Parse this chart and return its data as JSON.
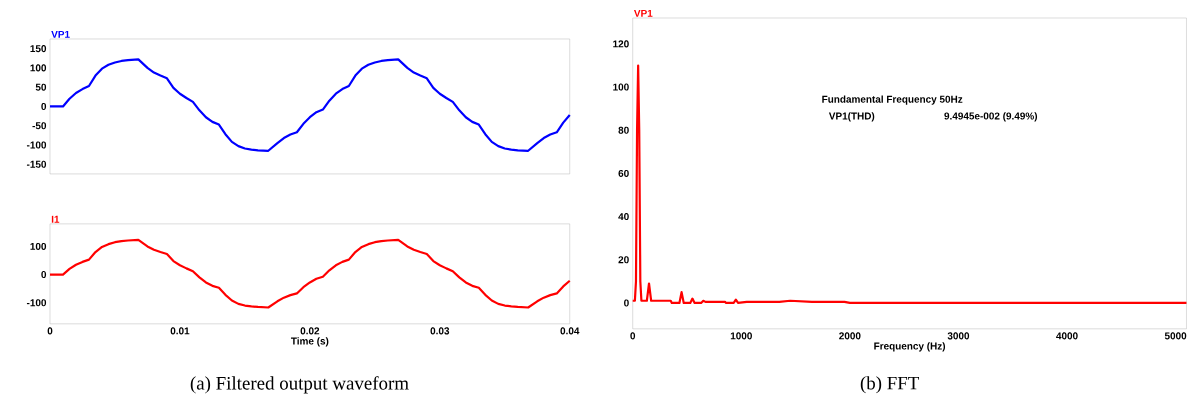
{
  "chart_data": [
    {
      "type": "line",
      "x": [
        0,
        0.001,
        0.0015,
        0.002,
        0.0025,
        0.003,
        0.0035,
        0.004,
        0.0045,
        0.005,
        0.0055,
        0.006,
        0.0068,
        0.0075,
        0.008,
        0.0085,
        0.009,
        0.0095,
        0.01,
        0.0105,
        0.011,
        0.0115,
        0.012,
        0.0125,
        0.013,
        0.0135,
        0.014,
        0.0145,
        0.015,
        0.0155,
        0.016,
        0.0168,
        0.0175,
        0.018,
        0.0185,
        0.019,
        0.0195,
        0.02,
        0.0205,
        0.021,
        0.0215,
        0.022,
        0.0225,
        0.023,
        0.0235,
        0.024,
        0.0245,
        0.025,
        0.0255,
        0.026,
        0.0268,
        0.0275,
        0.028,
        0.0285,
        0.029,
        0.0295,
        0.03,
        0.0305,
        0.031,
        0.0315,
        0.032,
        0.0325,
        0.033,
        0.0335,
        0.034,
        0.0345,
        0.035,
        0.0355,
        0.036,
        0.0368,
        0.0375,
        0.038,
        0.0385,
        0.039,
        0.0395,
        0.04
      ],
      "series": [
        {
          "name": "VP1",
          "color": "#0000ff",
          "values": [
            0,
            0,
            20,
            35,
            45,
            53,
            80,
            98,
            108,
            114,
            118,
            120,
            122,
            100,
            88,
            80,
            73,
            48,
            33,
            22,
            12,
            -10,
            -28,
            -40,
            -47,
            -72,
            -92,
            -103,
            -109,
            -112,
            -114,
            -115,
            -95,
            -82,
            -73,
            -67,
            -45,
            -28,
            -15,
            -8,
            15,
            33,
            45,
            53,
            80,
            98,
            108,
            114,
            118,
            120,
            122,
            100,
            88,
            80,
            73,
            48,
            33,
            22,
            12,
            -10,
            -28,
            -40,
            -47,
            -72,
            -92,
            -103,
            -109,
            -112,
            -114,
            -115,
            -95,
            -82,
            -73,
            -67,
            -42,
            -22
          ]
        }
      ],
      "xlim": [
        0,
        0.04
      ],
      "ylim": [
        -175,
        175
      ],
      "xticks": [
        0,
        0.01,
        0.02,
        0.03,
        0.04
      ],
      "yticks": [
        -150,
        -100,
        -50,
        0,
        50,
        100,
        150
      ],
      "tick_labels": "y"
    },
    {
      "type": "line",
      "x": [
        0,
        0.001,
        0.0015,
        0.002,
        0.0025,
        0.003,
        0.0035,
        0.004,
        0.0045,
        0.005,
        0.0055,
        0.006,
        0.0068,
        0.0075,
        0.008,
        0.0085,
        0.009,
        0.0095,
        0.01,
        0.0105,
        0.011,
        0.0115,
        0.012,
        0.0125,
        0.013,
        0.0135,
        0.014,
        0.0145,
        0.015,
        0.0155,
        0.016,
        0.0168,
        0.0175,
        0.018,
        0.0185,
        0.019,
        0.0195,
        0.02,
        0.0205,
        0.021,
        0.0215,
        0.022,
        0.0225,
        0.023,
        0.0235,
        0.024,
        0.0245,
        0.025,
        0.0255,
        0.026,
        0.0268,
        0.0275,
        0.028,
        0.0285,
        0.029,
        0.0295,
        0.03,
        0.0305,
        0.031,
        0.0315,
        0.032,
        0.0325,
        0.033,
        0.0335,
        0.034,
        0.0345,
        0.035,
        0.0355,
        0.036,
        0.0368,
        0.0375,
        0.038,
        0.0385,
        0.039,
        0.0395,
        0.04
      ],
      "series": [
        {
          "name": "I1",
          "color": "#ff0000",
          "values": [
            0,
            0,
            20,
            35,
            45,
            53,
            80,
            98,
            108,
            115,
            119,
            121,
            123,
            100,
            88,
            80,
            73,
            48,
            33,
            22,
            12,
            -10,
            -28,
            -40,
            -47,
            -72,
            -92,
            -104,
            -110,
            -113,
            -115,
            -117,
            -95,
            -82,
            -73,
            -67,
            -45,
            -28,
            -15,
            -8,
            15,
            33,
            45,
            53,
            80,
            98,
            108,
            115,
            119,
            121,
            123,
            100,
            88,
            80,
            73,
            48,
            33,
            22,
            12,
            -10,
            -28,
            -40,
            -47,
            -72,
            -92,
            -104,
            -110,
            -113,
            -115,
            -117,
            -95,
            -82,
            -73,
            -67,
            -42,
            -22
          ]
        }
      ],
      "xlim": [
        0,
        0.04
      ],
      "ylim": [
        -175,
        180
      ],
      "xticks": [
        0,
        0.01,
        0.02,
        0.03,
        0.04
      ],
      "yticks": [
        -100,
        0,
        100
      ],
      "xlabel": "Time (s)",
      "annotations": [
        "(a) Filtered output waveform"
      ]
    },
    {
      "type": "line",
      "x": [
        0,
        20,
        30,
        40,
        50,
        60,
        70,
        80,
        130,
        150,
        170,
        350,
        360,
        430,
        450,
        470,
        530,
        550,
        570,
        630,
        650,
        670,
        850,
        860,
        930,
        950,
        970,
        1050,
        1150,
        1350,
        1450,
        1650,
        1950,
        2000,
        5100
      ],
      "series": [
        {
          "name": "VP1",
          "color": "#ff0000",
          "values": [
            1,
            1,
            10,
            80,
            110,
            80,
            10,
            1,
            1,
            9,
            1,
            1,
            0,
            0,
            5,
            0,
            0,
            2,
            0,
            0,
            1,
            0.5,
            0.5,
            0,
            0,
            1.5,
            0,
            0.5,
            0.5,
            0.5,
            1,
            0.5,
            0.5,
            0,
            0
          ]
        }
      ],
      "xlim": [
        0,
        5100
      ],
      "ylim": [
        -12,
        132
      ],
      "xticks": [
        0,
        1000,
        2000,
        3000,
        4000,
        5000
      ],
      "yticks": [
        0,
        20,
        40,
        60,
        80,
        100,
        120
      ],
      "xlabel": "Frequency (Hz)",
      "annotations": [
        "Fundamental Frequency 50Hz",
        "VP1(THD)",
        "9.4945e-002 (9.49%)",
        "(b) FFT"
      ]
    }
  ]
}
